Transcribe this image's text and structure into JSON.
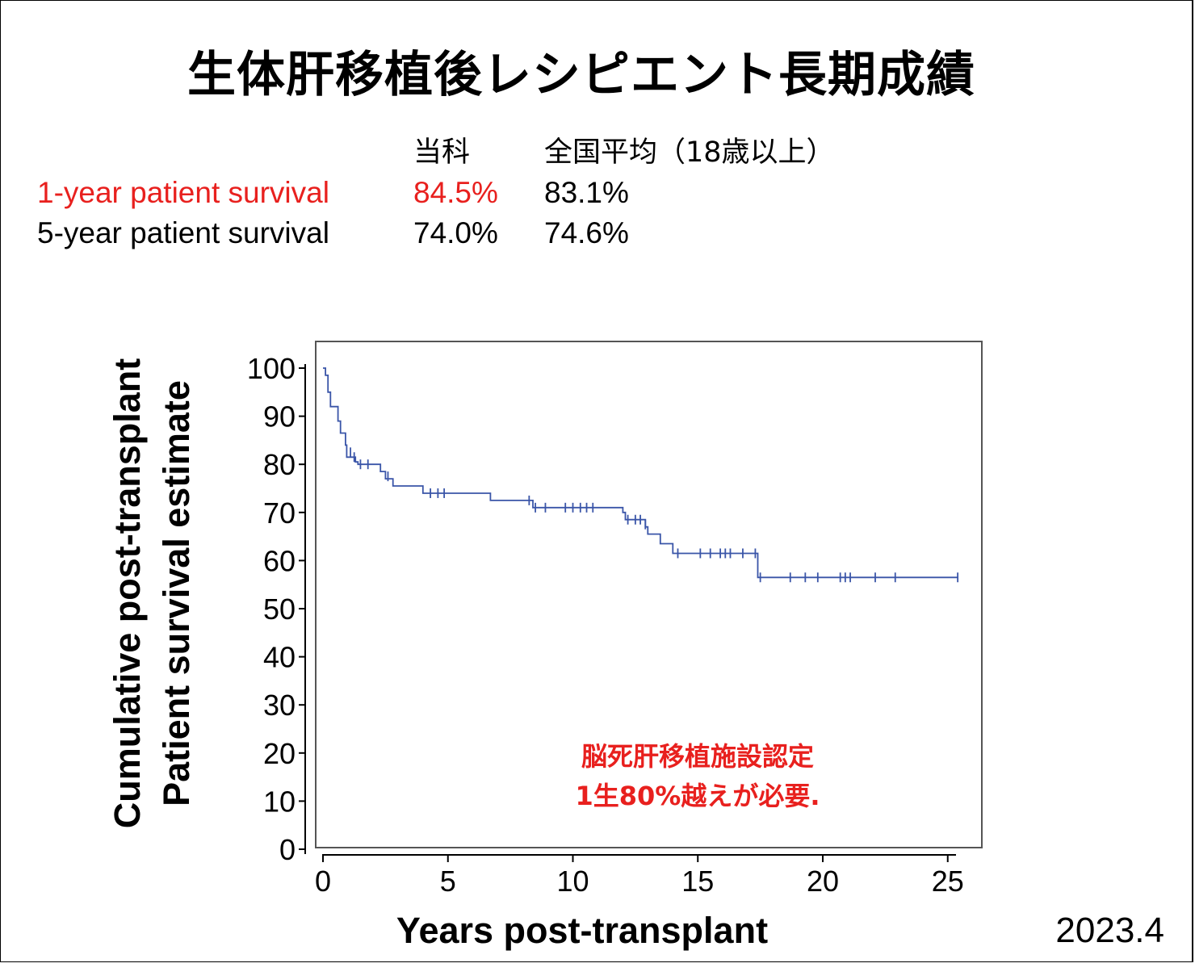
{
  "title": "生体肝移植後レシピエント長期成績",
  "stats": {
    "header": [
      "当科",
      "全国平均（18歳以上）"
    ],
    "rows": [
      {
        "label": "1-year patient survival",
        "dept": "84.5%",
        "national": "83.1%",
        "highlight": true
      },
      {
        "label": "5-year patient survival",
        "dept": "74.0%",
        "national": "74.6%",
        "highlight": false
      }
    ]
  },
  "date": "2023.4",
  "colors": {
    "highlight": "#e8201e",
    "curve": "#3a55a8"
  },
  "chart_data": {
    "type": "line",
    "subtype": "kaplan-meier step curve with censor marks",
    "ylabel_lines": [
      "Cumulative post-transplant",
      "Patient survival estimate"
    ],
    "xlabel": "Years post-transplant",
    "xlim": [
      0,
      26
    ],
    "ylim": [
      0,
      100
    ],
    "xticks": [
      0,
      5,
      10,
      15,
      20,
      25
    ],
    "yticks": [
      0,
      10,
      20,
      30,
      40,
      50,
      60,
      70,
      80,
      90,
      100
    ],
    "grid": false,
    "annotation": [
      "脳死肝移植施設認定",
      "1生80%越えが必要."
    ],
    "series": [
      {
        "steps": [
          [
            0,
            100
          ],
          [
            0.1,
            98.5
          ],
          [
            0.2,
            95
          ],
          [
            0.3,
            92
          ],
          [
            0.6,
            89
          ],
          [
            0.7,
            86.5
          ],
          [
            0.9,
            84
          ],
          [
            0.95,
            81.5
          ],
          [
            1.3,
            80.5
          ],
          [
            1.4,
            80
          ],
          [
            2.3,
            78.5
          ],
          [
            2.5,
            77
          ],
          [
            2.8,
            75.5
          ],
          [
            4.0,
            74
          ],
          [
            6.7,
            72.5
          ],
          [
            8.4,
            71
          ],
          [
            12.0,
            70
          ],
          [
            12.1,
            68.5
          ],
          [
            12.9,
            67
          ],
          [
            13.0,
            65.5
          ],
          [
            13.5,
            63.5
          ],
          [
            14.0,
            61.5
          ],
          [
            17.4,
            56.5
          ],
          [
            25.4,
            56.5
          ]
        ],
        "censored": [
          [
            1.1,
            82.5
          ],
          [
            1.25,
            81.5
          ],
          [
            1.5,
            80
          ],
          [
            1.8,
            80
          ],
          [
            2.6,
            77.5
          ],
          [
            4.3,
            74
          ],
          [
            4.6,
            74
          ],
          [
            4.85,
            74
          ],
          [
            8.25,
            72.5
          ],
          [
            8.5,
            71
          ],
          [
            8.9,
            71
          ],
          [
            9.7,
            71
          ],
          [
            10.0,
            71
          ],
          [
            10.3,
            71
          ],
          [
            10.55,
            71
          ],
          [
            10.8,
            71
          ],
          [
            12.2,
            68.5
          ],
          [
            12.5,
            68.5
          ],
          [
            12.7,
            68.5
          ],
          [
            12.9,
            67.5
          ],
          [
            14.2,
            61.5
          ],
          [
            15.1,
            61.5
          ],
          [
            15.5,
            61.5
          ],
          [
            15.9,
            61.5
          ],
          [
            16.1,
            61.5
          ],
          [
            16.3,
            61.5
          ],
          [
            16.8,
            61.5
          ],
          [
            17.3,
            61.5
          ],
          [
            17.5,
            56.5
          ],
          [
            18.7,
            56.5
          ],
          [
            19.3,
            56.5
          ],
          [
            19.8,
            56.5
          ],
          [
            20.7,
            56.5
          ],
          [
            20.9,
            56.5
          ],
          [
            21.1,
            56.5
          ],
          [
            22.1,
            56.5
          ],
          [
            22.9,
            56.5
          ],
          [
            25.4,
            56.5
          ]
        ]
      }
    ]
  }
}
